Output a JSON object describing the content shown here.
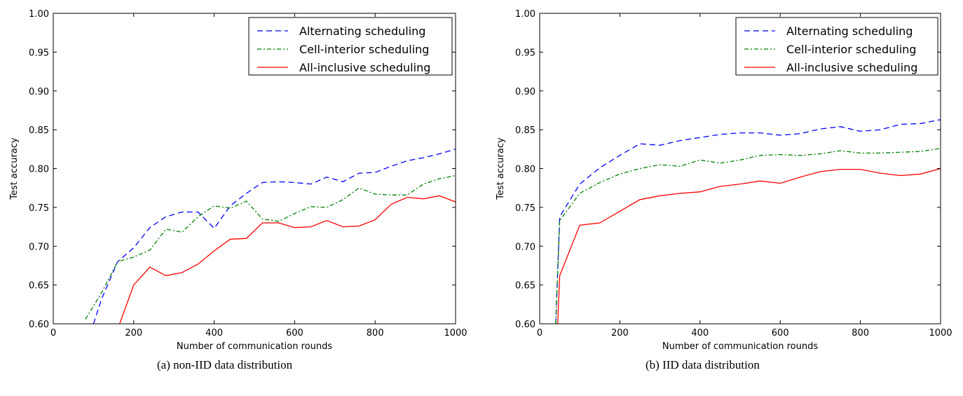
{
  "chart_data": [
    {
      "type": "line",
      "caption": "(a)  non-IID data distribution",
      "xlabel": "Number of communication rounds",
      "ylabel": "Test accuracy",
      "xlim": [
        0,
        1000
      ],
      "ylim": [
        0.6,
        1.0
      ],
      "xticks": [
        "0",
        "200",
        "400",
        "600",
        "800",
        "1000"
      ],
      "yticks": [
        "0.60",
        "0.65",
        "0.70",
        "0.75",
        "0.80",
        "0.85",
        "0.90",
        "0.95",
        "1.00"
      ],
      "legend_position": "top-right",
      "series": [
        {
          "name": "Alternating scheduling",
          "color": "#0000ff",
          "style": "dashed",
          "x": [
            100,
            120,
            160,
            200,
            240,
            280,
            320,
            360,
            400,
            440,
            480,
            520,
            560,
            600,
            640,
            680,
            720,
            760,
            800,
            840,
            880,
            920,
            960,
            1000
          ],
          "y": [
            0.6,
            0.632,
            0.68,
            0.698,
            0.724,
            0.738,
            0.744,
            0.744,
            0.723,
            0.752,
            0.768,
            0.782,
            0.783,
            0.782,
            0.78,
            0.789,
            0.783,
            0.794,
            0.795,
            0.803,
            0.81,
            0.814,
            0.819,
            0.825
          ]
        },
        {
          "name": "Cell-interior scheduling",
          "color": "#008000",
          "style": "dashdot",
          "x": [
            80,
            120,
            160,
            200,
            240,
            280,
            320,
            360,
            400,
            440,
            480,
            520,
            560,
            600,
            640,
            680,
            720,
            760,
            800,
            840,
            880,
            920,
            960,
            1000
          ],
          "y": [
            0.606,
            0.64,
            0.68,
            0.686,
            0.695,
            0.722,
            0.718,
            0.738,
            0.752,
            0.749,
            0.758,
            0.735,
            0.732,
            0.742,
            0.751,
            0.75,
            0.76,
            0.775,
            0.767,
            0.766,
            0.766,
            0.78,
            0.787,
            0.791
          ]
        },
        {
          "name": "All-inclusive scheduling",
          "color": "#ff0000",
          "style": "solid",
          "x": [
            165,
            200,
            240,
            280,
            320,
            360,
            400,
            440,
            480,
            520,
            560,
            600,
            640,
            680,
            720,
            760,
            800,
            840,
            880,
            920,
            960,
            1000
          ],
          "y": [
            0.6,
            0.65,
            0.673,
            0.662,
            0.666,
            0.677,
            0.694,
            0.709,
            0.71,
            0.73,
            0.73,
            0.724,
            0.725,
            0.733,
            0.725,
            0.726,
            0.734,
            0.754,
            0.763,
            0.761,
            0.765,
            0.757
          ]
        }
      ]
    },
    {
      "type": "line",
      "caption": "(b)  IID data distribution",
      "xlabel": "Number of communication rounds",
      "ylabel": "Test accuracy",
      "xlim": [
        0,
        1000
      ],
      "ylim": [
        0.6,
        1.0
      ],
      "xticks": [
        "0",
        "200",
        "400",
        "600",
        "800",
        "1000"
      ],
      "yticks": [
        "0.60",
        "0.65",
        "0.70",
        "0.75",
        "0.80",
        "0.85",
        "0.90",
        "0.95",
        "1.00"
      ],
      "legend_position": "top-right",
      "series": [
        {
          "name": "Alternating scheduling",
          "color": "#0000ff",
          "style": "dashed",
          "x": [
            40,
            50,
            100,
            150,
            200,
            250,
            300,
            350,
            400,
            450,
            500,
            550,
            600,
            650,
            700,
            750,
            800,
            850,
            900,
            950,
            1000
          ],
          "y": [
            0.6,
            0.738,
            0.78,
            0.801,
            0.817,
            0.832,
            0.83,
            0.836,
            0.84,
            0.844,
            0.846,
            0.846,
            0.843,
            0.845,
            0.851,
            0.854,
            0.848,
            0.85,
            0.857,
            0.858,
            0.863
          ]
        },
        {
          "name": "Cell-interior scheduling",
          "color": "#008000",
          "style": "dashdot",
          "x": [
            40,
            50,
            100,
            150,
            200,
            250,
            300,
            350,
            400,
            450,
            500,
            550,
            600,
            650,
            700,
            750,
            800,
            850,
            900,
            950,
            1000
          ],
          "y": [
            0.6,
            0.733,
            0.768,
            0.782,
            0.793,
            0.8,
            0.805,
            0.803,
            0.811,
            0.807,
            0.811,
            0.817,
            0.818,
            0.817,
            0.819,
            0.823,
            0.82,
            0.82,
            0.821,
            0.822,
            0.826
          ]
        },
        {
          "name": "All-inclusive scheduling",
          "color": "#ff0000",
          "style": "solid",
          "x": [
            45,
            50,
            100,
            150,
            200,
            250,
            300,
            350,
            400,
            450,
            500,
            550,
            600,
            650,
            700,
            750,
            800,
            850,
            900,
            950,
            1000
          ],
          "y": [
            0.6,
            0.662,
            0.727,
            0.73,
            0.745,
            0.76,
            0.765,
            0.768,
            0.77,
            0.777,
            0.78,
            0.784,
            0.781,
            0.789,
            0.796,
            0.799,
            0.799,
            0.794,
            0.791,
            0.793,
            0.8
          ]
        }
      ]
    }
  ]
}
